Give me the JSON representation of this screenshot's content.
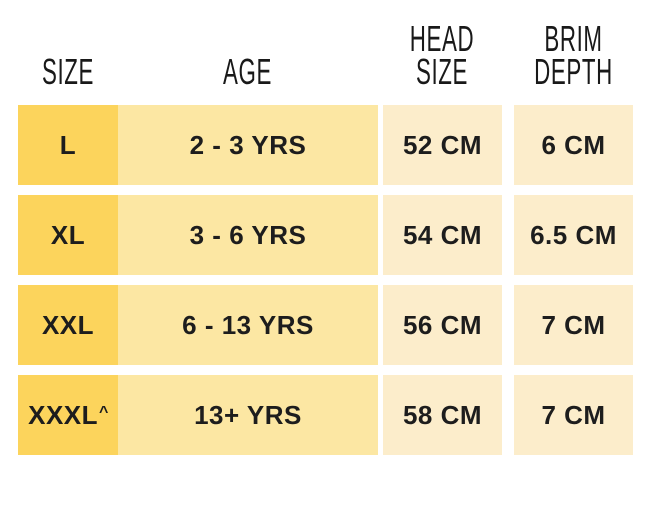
{
  "chart_data": {
    "type": "table",
    "title": "",
    "columns": [
      "SIZE",
      "AGE",
      "HEAD SIZE",
      "BRIM DEPTH"
    ],
    "rows": [
      [
        "L",
        "2 - 3 YRS",
        "52 CM",
        "6 CM"
      ],
      [
        "XL",
        "3 - 6 YRS",
        "54 CM",
        "6.5 CM"
      ],
      [
        "XXL",
        "6 - 13 YRS",
        "56 CM",
        "7 CM"
      ],
      [
        "XXXL^",
        "13+ YRS",
        "58 CM",
        "7 CM"
      ]
    ]
  },
  "table": {
    "headers": {
      "size": {
        "label": "SIZE"
      },
      "age": {
        "label": "AGE"
      },
      "head_size": {
        "line1": "HEAD",
        "line2": "SIZE"
      },
      "brim_depth": {
        "line1": "BRIM",
        "line2": "DEPTH"
      }
    },
    "rows": [
      {
        "size": "L",
        "age": "2 - 3 YRS",
        "head_size": "52 CM",
        "brim_depth": "6 CM"
      },
      {
        "size": "XL",
        "age": "3 - 6 YRS",
        "head_size": "54 CM",
        "brim_depth": "6.5 CM"
      },
      {
        "size": "XXL",
        "age": "6 - 13 YRS",
        "head_size": "56 CM",
        "brim_depth": "7 CM"
      },
      {
        "size": "XXXL",
        "footnote_marker": "^",
        "age": "13+ YRS",
        "head_size": "58 CM",
        "brim_depth": "7 CM"
      }
    ],
    "colors": {
      "size_column": "#FCD45C",
      "age_column": "#FCE7A3",
      "measure_columns": "#FCEDCB",
      "text": "#1C1C1C",
      "background": "#FFFFFF"
    }
  }
}
